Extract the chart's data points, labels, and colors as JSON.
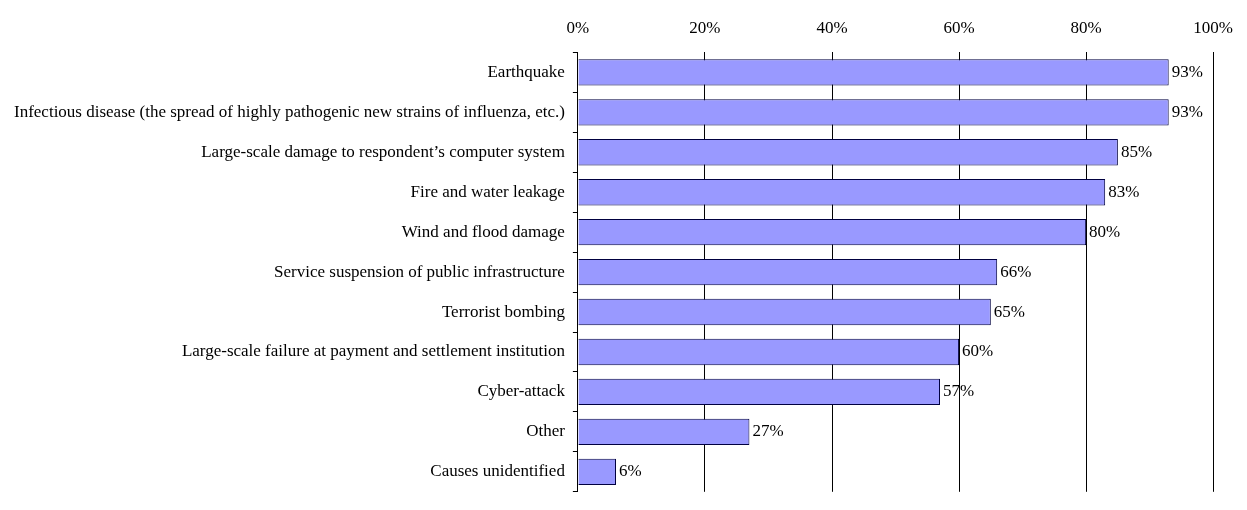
{
  "chart_data": {
    "type": "bar",
    "orientation": "horizontal",
    "categories": [
      "Earthquake",
      "Infectious disease (the spread of highly pathogenic new strains of influenza, etc.)",
      "Large-scale damage to respondent’s computer system",
      "Fire and water leakage",
      "Wind and flood damage",
      "Service suspension of public infrastructure",
      "Terrorist bombing",
      "Large-scale failure at payment and settlement institution",
      "Cyber-attack",
      "Other",
      "Causes unidentified"
    ],
    "values": [
      93,
      93,
      85,
      83,
      80,
      66,
      65,
      60,
      57,
      27,
      6
    ],
    "value_labels": [
      "93%",
      "93%",
      "85%",
      "83%",
      "80%",
      "66%",
      "65%",
      "60%",
      "57%",
      "27%",
      "6%"
    ],
    "color": "#9999ff",
    "xlim": [
      0,
      100
    ],
    "xticks": [
      {
        "value": 0,
        "label": "0%"
      },
      {
        "value": 20,
        "label": "20%"
      },
      {
        "value": 40,
        "label": "40%"
      },
      {
        "value": 60,
        "label": "60%"
      },
      {
        "value": 80,
        "label": "80%"
      },
      {
        "value": 100,
        "label": "100%"
      }
    ],
    "grid": "x",
    "legend": false
  }
}
